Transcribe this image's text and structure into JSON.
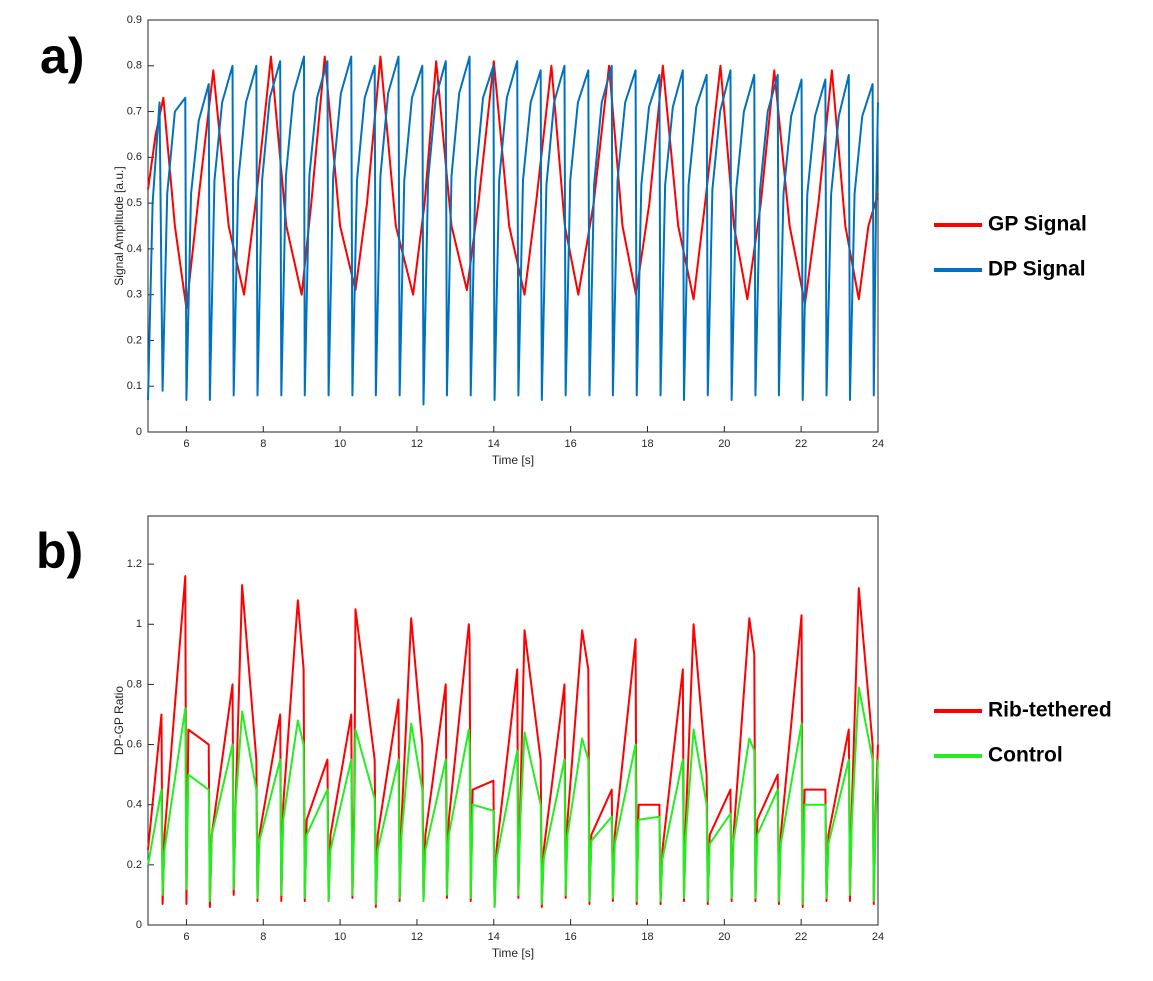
{
  "chart_data": [
    {
      "type": "line",
      "label": "a)",
      "xlabel": "Time [s]",
      "ylabel": "Signal Amplitude [a.u.]",
      "xlim": [
        5,
        24
      ],
      "ylim": [
        0,
        0.9
      ],
      "xticks": [
        6,
        8,
        10,
        12,
        14,
        16,
        18,
        20,
        22,
        24
      ],
      "yticks": [
        0,
        0.1,
        0.2,
        0.3,
        0.4,
        0.5,
        0.6,
        0.7,
        0.8,
        0.9
      ],
      "legend": "outside-right",
      "series": [
        {
          "name": "GP Signal",
          "color": "#ff0000",
          "x": [
            5.0,
            5.2,
            5.4,
            5.7,
            6.0,
            6.3,
            6.7,
            7.1,
            7.5,
            7.8,
            8.2,
            8.6,
            9.0,
            9.25,
            9.6,
            10.0,
            10.4,
            10.7,
            11.05,
            11.45,
            11.9,
            12.2,
            12.5,
            12.9,
            13.3,
            13.6,
            14.0,
            14.4,
            14.8,
            15.1,
            15.5,
            15.85,
            16.2,
            16.6,
            17.0,
            17.35,
            17.7,
            18.05,
            18.4,
            18.8,
            19.2,
            19.5,
            19.9,
            20.25,
            20.6,
            20.95,
            21.3,
            21.7,
            22.1,
            22.45,
            22.8,
            23.15,
            23.5,
            23.75,
            24.0
          ],
          "values": [
            0.53,
            0.65,
            0.73,
            0.45,
            0.27,
            0.5,
            0.79,
            0.45,
            0.3,
            0.5,
            0.82,
            0.45,
            0.3,
            0.5,
            0.82,
            0.45,
            0.31,
            0.5,
            0.82,
            0.45,
            0.3,
            0.5,
            0.81,
            0.45,
            0.31,
            0.5,
            0.81,
            0.45,
            0.3,
            0.5,
            0.8,
            0.45,
            0.3,
            0.5,
            0.8,
            0.45,
            0.3,
            0.5,
            0.8,
            0.45,
            0.29,
            0.5,
            0.8,
            0.45,
            0.29,
            0.5,
            0.79,
            0.45,
            0.28,
            0.5,
            0.79,
            0.45,
            0.29,
            0.45,
            0.52
          ]
        },
        {
          "name": "DP Signal",
          "color": "#0072bd",
          "x": [
            5.0,
            5.12,
            5.3,
            5.38,
            5.5,
            5.7,
            5.97,
            6.0,
            6.12,
            6.32,
            6.58,
            6.61,
            6.73,
            6.93,
            7.2,
            7.23,
            7.35,
            7.55,
            7.82,
            7.85,
            7.97,
            8.17,
            8.44,
            8.47,
            8.59,
            8.79,
            9.06,
            9.08,
            9.2,
            9.4,
            9.67,
            9.7,
            9.82,
            10.02,
            10.29,
            10.32,
            10.44,
            10.64,
            10.9,
            10.93,
            11.05,
            11.25,
            11.52,
            11.55,
            11.67,
            11.87,
            12.14,
            12.17,
            12.29,
            12.49,
            12.75,
            12.78,
            12.9,
            13.1,
            13.37,
            13.4,
            13.52,
            13.72,
            13.99,
            14.02,
            14.14,
            14.34,
            14.61,
            14.64,
            14.76,
            14.96,
            15.22,
            15.25,
            15.37,
            15.57,
            15.84,
            15.87,
            15.99,
            16.19,
            16.46,
            16.49,
            16.61,
            16.81,
            17.07,
            17.1,
            17.22,
            17.42,
            17.69,
            17.72,
            17.84,
            18.04,
            18.31,
            18.34,
            18.46,
            18.66,
            18.92,
            18.95,
            19.07,
            19.27,
            19.54,
            19.57,
            19.69,
            19.89,
            20.16,
            20.19,
            20.31,
            20.51,
            20.78,
            20.81,
            20.93,
            21.13,
            21.39,
            21.42,
            21.54,
            21.74,
            22.01,
            22.04,
            22.16,
            22.36,
            22.63,
            22.66,
            22.78,
            22.98,
            23.24,
            23.27,
            23.39,
            23.59,
            23.86,
            23.89,
            23.95,
            24.0
          ],
          "values": [
            0.07,
            0.5,
            0.72,
            0.09,
            0.52,
            0.7,
            0.73,
            0.07,
            0.52,
            0.68,
            0.76,
            0.07,
            0.55,
            0.72,
            0.8,
            0.08,
            0.55,
            0.72,
            0.8,
            0.08,
            0.55,
            0.73,
            0.81,
            0.08,
            0.56,
            0.74,
            0.82,
            0.08,
            0.56,
            0.73,
            0.81,
            0.08,
            0.56,
            0.74,
            0.82,
            0.08,
            0.55,
            0.73,
            0.8,
            0.08,
            0.56,
            0.74,
            0.82,
            0.08,
            0.55,
            0.73,
            0.8,
            0.06,
            0.55,
            0.73,
            0.81,
            0.08,
            0.56,
            0.74,
            0.82,
            0.08,
            0.55,
            0.73,
            0.8,
            0.07,
            0.55,
            0.73,
            0.81,
            0.08,
            0.55,
            0.72,
            0.79,
            0.07,
            0.54,
            0.72,
            0.8,
            0.08,
            0.55,
            0.72,
            0.79,
            0.08,
            0.54,
            0.72,
            0.8,
            0.08,
            0.55,
            0.72,
            0.79,
            0.08,
            0.54,
            0.71,
            0.78,
            0.08,
            0.54,
            0.71,
            0.79,
            0.07,
            0.54,
            0.71,
            0.78,
            0.08,
            0.53,
            0.7,
            0.79,
            0.07,
            0.53,
            0.7,
            0.78,
            0.08,
            0.53,
            0.7,
            0.78,
            0.08,
            0.52,
            0.69,
            0.77,
            0.07,
            0.52,
            0.69,
            0.77,
            0.08,
            0.52,
            0.69,
            0.78,
            0.07,
            0.52,
            0.69,
            0.76,
            0.08,
            0.5,
            0.72
          ]
        }
      ]
    },
    {
      "type": "line",
      "label": "b)",
      "xlabel": "Time [s]",
      "ylabel": "DP-GP Ratio",
      "xlim": [
        5,
        24
      ],
      "ylim": [
        0,
        1.36
      ],
      "xticks": [
        6,
        8,
        10,
        12,
        14,
        16,
        18,
        20,
        22,
        24
      ],
      "yticks": [
        0,
        0.2,
        0.4,
        0.6,
        0.8,
        1,
        1.2
      ],
      "legend": "outside-right",
      "x": [
        5.0,
        5.35,
        5.38,
        5.43,
        5.97,
        6.0,
        6.05,
        6.58,
        6.61,
        6.66,
        7.2,
        7.23,
        7.28,
        7.45,
        7.82,
        7.85,
        7.9,
        8.44,
        8.47,
        8.52,
        8.9,
        9.05,
        9.08,
        9.13,
        9.67,
        9.7,
        9.75,
        10.29,
        10.32,
        10.37,
        10.4,
        10.9,
        10.93,
        10.98,
        11.52,
        11.55,
        11.6,
        11.85,
        12.14,
        12.17,
        12.22,
        12.75,
        12.78,
        12.83,
        13.35,
        13.37,
        13.4,
        13.45,
        13.99,
        14.02,
        14.07,
        14.61,
        14.64,
        14.69,
        14.8,
        15.22,
        15.25,
        15.3,
        15.84,
        15.87,
        15.92,
        16.3,
        16.46,
        16.49,
        16.54,
        17.07,
        17.1,
        17.15,
        17.69,
        17.72,
        17.77,
        18.31,
        18.34,
        18.39,
        18.92,
        18.95,
        19.0,
        19.2,
        19.54,
        19.57,
        19.62,
        20.16,
        20.19,
        20.24,
        20.65,
        20.78,
        20.81,
        20.86,
        21.39,
        21.42,
        21.47,
        22.01,
        22.04,
        22.09,
        22.63,
        22.66,
        22.71,
        23.24,
        23.27,
        23.32,
        23.5,
        23.86,
        23.89,
        23.94,
        24.0
      ],
      "series": [
        {
          "name": "Rib-tethered",
          "color": "#ff0000",
          "values": [
            0.25,
            0.7,
            0.07,
            0.3,
            1.16,
            0.07,
            0.65,
            0.6,
            0.06,
            0.3,
            0.8,
            0.1,
            0.4,
            1.13,
            0.55,
            0.08,
            0.3,
            0.7,
            0.08,
            0.4,
            1.08,
            0.85,
            0.08,
            0.35,
            0.55,
            0.08,
            0.3,
            0.7,
            0.09,
            0.4,
            1.05,
            0.55,
            0.06,
            0.3,
            0.75,
            0.08,
            0.35,
            1.02,
            0.6,
            0.08,
            0.3,
            0.8,
            0.09,
            0.35,
            1.0,
            0.95,
            0.08,
            0.45,
            0.48,
            0.06,
            0.25,
            0.85,
            0.09,
            0.4,
            0.98,
            0.55,
            0.06,
            0.25,
            0.8,
            0.09,
            0.35,
            0.98,
            0.85,
            0.07,
            0.3,
            0.45,
            0.08,
            0.3,
            0.95,
            0.07,
            0.4,
            0.4,
            0.07,
            0.25,
            0.85,
            0.08,
            0.35,
            1.0,
            0.5,
            0.07,
            0.3,
            0.45,
            0.08,
            0.3,
            1.02,
            0.9,
            0.08,
            0.35,
            0.5,
            0.07,
            0.3,
            1.03,
            0.06,
            0.45,
            0.45,
            0.08,
            0.3,
            0.65,
            0.08,
            0.4,
            1.12,
            0.6,
            0.07,
            0.4,
            0.6
          ]
        },
        {
          "name": "Control",
          "color": "#22ee22",
          "values": [
            0.2,
            0.45,
            0.1,
            0.25,
            0.72,
            0.12,
            0.5,
            0.45,
            0.08,
            0.3,
            0.6,
            0.12,
            0.4,
            0.71,
            0.45,
            0.09,
            0.28,
            0.55,
            0.1,
            0.35,
            0.68,
            0.6,
            0.09,
            0.3,
            0.45,
            0.08,
            0.25,
            0.55,
            0.1,
            0.35,
            0.65,
            0.42,
            0.07,
            0.25,
            0.55,
            0.09,
            0.3,
            0.67,
            0.45,
            0.08,
            0.25,
            0.55,
            0.1,
            0.3,
            0.65,
            0.6,
            0.09,
            0.4,
            0.38,
            0.06,
            0.22,
            0.58,
            0.1,
            0.35,
            0.64,
            0.4,
            0.07,
            0.22,
            0.55,
            0.1,
            0.3,
            0.62,
            0.55,
            0.08,
            0.28,
            0.36,
            0.09,
            0.27,
            0.6,
            0.08,
            0.35,
            0.36,
            0.08,
            0.22,
            0.55,
            0.09,
            0.3,
            0.65,
            0.4,
            0.08,
            0.27,
            0.37,
            0.09,
            0.28,
            0.62,
            0.58,
            0.09,
            0.3,
            0.45,
            0.08,
            0.27,
            0.67,
            0.07,
            0.4,
            0.4,
            0.09,
            0.27,
            0.55,
            0.1,
            0.35,
            0.79,
            0.55,
            0.08,
            0.35,
            0.55
          ]
        }
      ]
    }
  ]
}
